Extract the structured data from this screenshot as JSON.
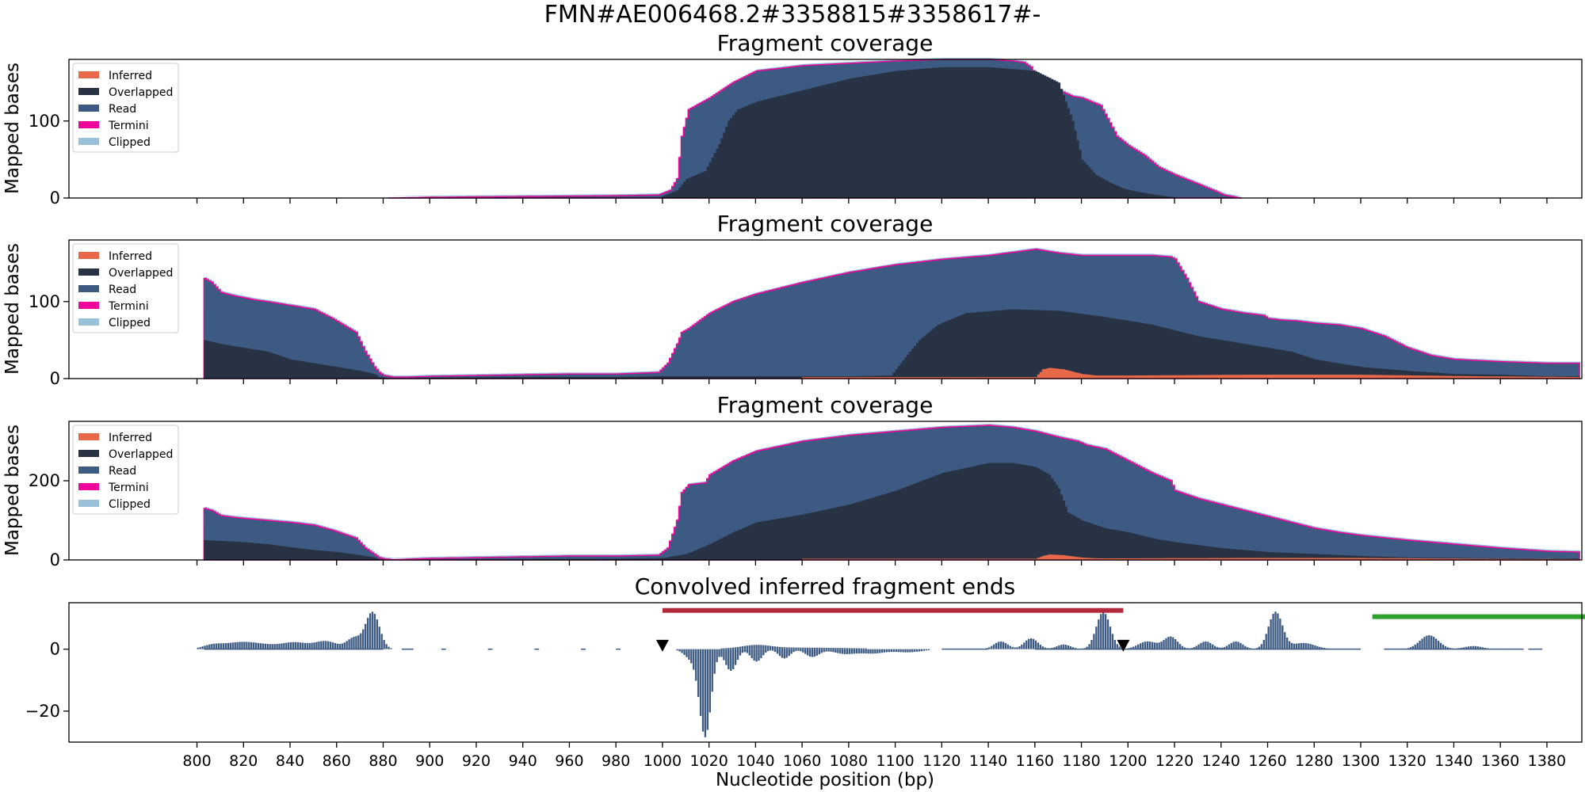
{
  "figure": {
    "suptitle": "FMN#AE006468.2#3358815#3358617#-",
    "xlabel": "Nucleotide position (bp)",
    "xticks": [
      800,
      820,
      840,
      860,
      880,
      900,
      920,
      940,
      960,
      980,
      1000,
      1020,
      1040,
      1060,
      1080,
      1100,
      1120,
      1140,
      1160,
      1180,
      1200,
      1220,
      1240,
      1260,
      1280,
      1300,
      1320,
      1340,
      1360,
      1380
    ],
    "xlim": [
      745,
      1395
    ]
  },
  "legend": [
    {
      "label": "Inferred",
      "color": "#e8694a"
    },
    {
      "label": "Overlapped",
      "color": "#283245"
    },
    {
      "label": "Read",
      "color": "#3d5a82"
    },
    {
      "label": "Termini",
      "color": "#f0059c"
    },
    {
      "label": "Clipped",
      "color": "#98c1d9"
    }
  ],
  "chart_data": [
    {
      "type": "area",
      "title": "Fragment coverage",
      "ylabel": "Mapped bases",
      "ylim": [
        0,
        180
      ],
      "yticks": [
        0,
        100
      ],
      "legend_position": "upper-left",
      "series": [
        {
          "name": "Read",
          "color": "#3d5a82",
          "x": [
            882,
            900,
            940,
            980,
            998,
            1003,
            1006,
            1008,
            1011,
            1020,
            1030,
            1040,
            1060,
            1080,
            1100,
            1120,
            1140,
            1150,
            1155,
            1158,
            1160,
            1163,
            1170,
            1176,
            1180,
            1188,
            1195,
            1200,
            1207,
            1213,
            1220,
            1230,
            1238,
            1241,
            1248
          ],
          "values": [
            0,
            1,
            2,
            3,
            4,
            10,
            25,
            80,
            115,
            130,
            150,
            165,
            172,
            175,
            178,
            180,
            180,
            178,
            176,
            170,
            160,
            150,
            140,
            132,
            130,
            120,
            80,
            68,
            55,
            40,
            30,
            18,
            8,
            4,
            0
          ]
        },
        {
          "name": "Overlapped",
          "color": "#283245",
          "x": [
            998,
            1006,
            1010,
            1018,
            1024,
            1028,
            1032,
            1040,
            1060,
            1080,
            1100,
            1120,
            1140,
            1160,
            1170,
            1176,
            1180,
            1186,
            1192,
            1198,
            1204,
            1212,
            1222
          ],
          "values": [
            0,
            10,
            25,
            35,
            70,
            100,
            115,
            125,
            140,
            155,
            165,
            170,
            170,
            165,
            150,
            100,
            50,
            30,
            20,
            12,
            8,
            4,
            0
          ]
        },
        {
          "name": "Inferred",
          "color": "#e8694a",
          "x": [],
          "values": []
        }
      ]
    },
    {
      "type": "area",
      "title": "Fragment coverage",
      "ylabel": "Mapped bases",
      "ylim": [
        0,
        180
      ],
      "yticks": [
        0,
        100
      ],
      "legend_position": "upper-left",
      "series": [
        {
          "name": "Read",
          "color": "#3d5a82",
          "x": [
            803,
            806,
            810,
            815,
            820,
            825,
            830,
            840,
            850,
            858,
            868,
            872,
            876,
            878,
            880,
            884,
            890,
            900,
            920,
            960,
            980,
            998,
            1002,
            1006,
            1008,
            1011,
            1020,
            1030,
            1040,
            1060,
            1080,
            1100,
            1120,
            1140,
            1160,
            1170,
            1180,
            1190,
            1200,
            1210,
            1218,
            1220,
            1225,
            1230,
            1240,
            1250,
            1258,
            1260,
            1266,
            1272,
            1280,
            1290,
            1300,
            1310,
            1320,
            1330,
            1340,
            1360,
            1380,
            1393
          ],
          "values": [
            130,
            125,
            112,
            108,
            105,
            102,
            100,
            95,
            90,
            78,
            60,
            35,
            15,
            8,
            4,
            2,
            2,
            3,
            4,
            6,
            6,
            8,
            20,
            45,
            60,
            65,
            85,
            100,
            110,
            125,
            138,
            148,
            155,
            160,
            168,
            163,
            160,
            160,
            160,
            160,
            158,
            155,
            130,
            100,
            90,
            85,
            82,
            78,
            76,
            75,
            72,
            70,
            65,
            55,
            40,
            30,
            25,
            22,
            20,
            20
          ]
        },
        {
          "name": "Overlapped",
          "color": "#283245",
          "x": [
            803,
            810,
            820,
            830,
            840,
            850,
            860,
            870,
            876,
            878,
            884,
            900,
            940,
            980,
            1000,
            1040,
            1080,
            1098,
            1102,
            1110,
            1118,
            1130,
            1150,
            1170,
            1190,
            1210,
            1230,
            1250,
            1270,
            1280,
            1300,
            1320,
            1340,
            1360,
            1380,
            1393
          ],
          "values": [
            50,
            45,
            40,
            35,
            25,
            20,
            15,
            10,
            6,
            2,
            0,
            1,
            2,
            2,
            3,
            3,
            3,
            4,
            20,
            50,
            70,
            85,
            90,
            88,
            80,
            70,
            55,
            45,
            35,
            25,
            15,
            10,
            6,
            5,
            3,
            3
          ]
        },
        {
          "name": "Inferred",
          "color": "#e8694a",
          "x": [
            1060,
            1100,
            1160,
            1163,
            1166,
            1172,
            1176,
            1180,
            1186,
            1200,
            1250,
            1300,
            1350,
            1393
          ],
          "values": [
            2,
            2,
            2,
            12,
            14,
            12,
            9,
            6,
            4,
            4,
            5,
            5,
            3,
            2
          ]
        }
      ]
    },
    {
      "type": "area",
      "title": "Fragment coverage",
      "ylabel": "Mapped bases",
      "ylim": [
        0,
        350
      ],
      "yticks": [
        0,
        200
      ],
      "legend_position": "upper-left",
      "series": [
        {
          "name": "Read",
          "color": "#3d5a82",
          "x": [
            803,
            806,
            810,
            815,
            820,
            830,
            840,
            850,
            858,
            868,
            872,
            876,
            878,
            880,
            884,
            890,
            900,
            920,
            960,
            980,
            998,
            1002,
            1006,
            1008,
            1011,
            1018,
            1020,
            1030,
            1040,
            1060,
            1080,
            1100,
            1120,
            1140,
            1150,
            1160,
            1170,
            1178,
            1182,
            1190,
            1200,
            1210,
            1218,
            1220,
            1230,
            1240,
            1250,
            1260,
            1270,
            1280,
            1290,
            1300,
            1320,
            1340,
            1360,
            1380,
            1393
          ],
          "values": [
            130,
            125,
            112,
            108,
            105,
            100,
            95,
            88,
            75,
            55,
            30,
            14,
            6,
            3,
            1,
            2,
            4,
            6,
            10,
            10,
            12,
            30,
            100,
            170,
            190,
            195,
            215,
            250,
            275,
            300,
            315,
            325,
            335,
            340,
            335,
            325,
            310,
            300,
            290,
            280,
            250,
            220,
            200,
            175,
            155,
            140,
            125,
            110,
            95,
            80,
            70,
            62,
            50,
            40,
            30,
            22,
            20
          ]
        },
        {
          "name": "Overlapped",
          "color": "#283245",
          "x": [
            803,
            810,
            820,
            830,
            840,
            850,
            860,
            870,
            876,
            878,
            884,
            900,
            940,
            980,
            1000,
            1010,
            1020,
            1030,
            1040,
            1050,
            1060,
            1080,
            1100,
            1120,
            1140,
            1150,
            1160,
            1166,
            1170,
            1174,
            1180,
            1190,
            1200,
            1210,
            1220,
            1240,
            1260,
            1280,
            1300,
            1320,
            1340,
            1360,
            1380,
            1393
          ],
          "values": [
            50,
            48,
            45,
            40,
            32,
            25,
            20,
            12,
            6,
            2,
            0,
            1,
            2,
            3,
            5,
            15,
            40,
            70,
            95,
            105,
            115,
            140,
            175,
            220,
            245,
            245,
            235,
            215,
            180,
            120,
            100,
            80,
            70,
            55,
            45,
            30,
            20,
            15,
            10,
            6,
            5,
            4,
            3,
            3
          ]
        },
        {
          "name": "Inferred",
          "color": "#e8694a",
          "x": [
            1060,
            1100,
            1160,
            1163,
            1166,
            1172,
            1176,
            1180,
            1186,
            1200,
            1250,
            1300,
            1350,
            1393
          ],
          "values": [
            3,
            3,
            3,
            10,
            14,
            12,
            9,
            6,
            4,
            4,
            5,
            5,
            3,
            2
          ]
        }
      ]
    },
    {
      "type": "bar",
      "title": "Convolved inferred fragment ends",
      "ylim": [
        -30,
        15
      ],
      "yticks": [
        0,
        -20
      ],
      "peaks": [
        {
          "x": 806,
          "h": 1,
          "w": 4
        },
        {
          "x": 818,
          "h": 2,
          "w": 8
        },
        {
          "x": 833,
          "h": 1,
          "w": 10
        },
        {
          "x": 842,
          "h": 1.5,
          "w": 5
        },
        {
          "x": 855,
          "h": 2.5,
          "w": 5
        },
        {
          "x": 867,
          "h": 3.5,
          "w": 3
        },
        {
          "x": 875,
          "h": 12,
          "w": 3
        },
        {
          "x": 1040,
          "h": 1,
          "w": 6
        },
        {
          "x": 1058,
          "h": 0.5,
          "w": 25
        },
        {
          "x": 1145,
          "h": 2.5,
          "w": 3
        },
        {
          "x": 1158,
          "h": 3.5,
          "w": 3
        },
        {
          "x": 1172,
          "h": 1.5,
          "w": 3
        },
        {
          "x": 1189,
          "h": 12,
          "w": 3
        },
        {
          "x": 1208,
          "h": 2.5,
          "w": 4
        },
        {
          "x": 1218,
          "h": 4,
          "w": 3
        },
        {
          "x": 1233,
          "h": 2.5,
          "w": 3
        },
        {
          "x": 1246,
          "h": 2.5,
          "w": 3
        },
        {
          "x": 1263,
          "h": 12,
          "w": 3
        },
        {
          "x": 1275,
          "h": 2,
          "w": 5
        },
        {
          "x": 1329,
          "h": 4.5,
          "w": 4
        },
        {
          "x": 1348,
          "h": 1,
          "w": 4
        }
      ],
      "troughs": [
        {
          "x": 1018,
          "h": -28,
          "w": 2.5
        },
        {
          "x": 1012,
          "h": -3,
          "w": 3
        },
        {
          "x": 1029,
          "h": -7,
          "w": 2.5
        },
        {
          "x": 1040,
          "h": -4,
          "w": 2.5
        },
        {
          "x": 1052,
          "h": -3,
          "w": 2.5
        },
        {
          "x": 1064,
          "h": -2.5,
          "w": 3
        },
        {
          "x": 1078,
          "h": -1.5,
          "w": 5
        },
        {
          "x": 1090,
          "h": -1.3,
          "w": 5
        },
        {
          "x": 1105,
          "h": -1,
          "w": 6
        }
      ],
      "regions": [
        {
          "x0": 1000,
          "x1": 1198,
          "y": 12.5,
          "color": "#b22a3c"
        },
        {
          "x0": 1305,
          "x1": 1400,
          "y": 10.5,
          "color": "#2ea02c"
        }
      ],
      "markers": [
        {
          "x": 1000,
          "y": 2.5
        },
        {
          "x": 1198,
          "y": 2.5
        }
      ]
    }
  ]
}
